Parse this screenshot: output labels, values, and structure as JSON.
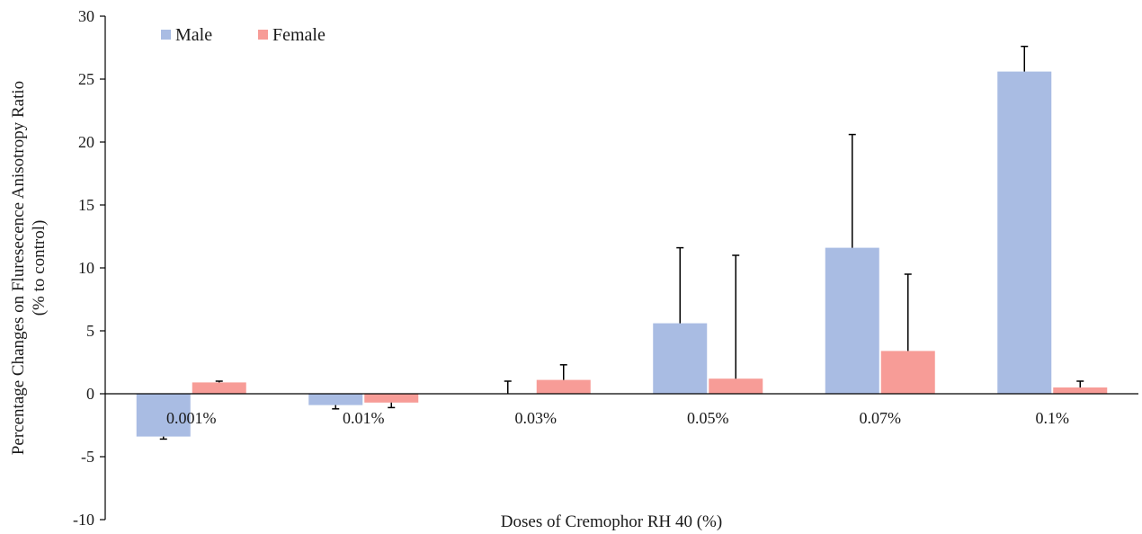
{
  "chart_data": {
    "type": "bar",
    "title": "",
    "xlabel": "Doses of Cremophor RH 40 (%)",
    "ylabel_line1": "Percentage Changes on Fluresecence Anisotropy Ratio",
    "ylabel_line2": "(% to control)",
    "ylim": [
      -10,
      30
    ],
    "yticks": [
      -10,
      -5,
      0,
      5,
      10,
      15,
      20,
      25,
      30
    ],
    "ytick_labels": [
      "-10",
      "-5",
      "0",
      "5",
      "10",
      "15",
      "20",
      "25",
      "30"
    ],
    "categories": [
      "0.001%",
      "0.01%",
      "0.03%",
      "0.05%",
      "0.07%",
      "0.1%"
    ],
    "series": [
      {
        "name": "Male",
        "color": "#a9bce3",
        "values": [
          -3.4,
          -0.9,
          0.0,
          5.6,
          11.6,
          25.6
        ],
        "error_upper": [
          -3.6,
          -1.2,
          1.0,
          11.6,
          20.6,
          27.6
        ]
      },
      {
        "name": "Female",
        "color": "#f79c97",
        "values": [
          0.9,
          -0.7,
          1.1,
          1.2,
          3.4,
          0.5
        ],
        "error_upper": [
          1.0,
          -1.1,
          2.3,
          11.0,
          9.5,
          1.0
        ]
      }
    ],
    "legend_position": "top-left",
    "grid": false
  }
}
